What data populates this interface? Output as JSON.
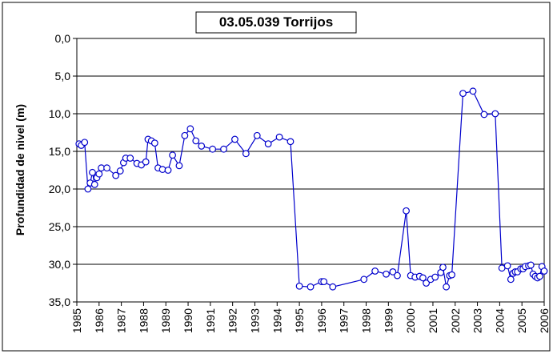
{
  "chart_data": {
    "type": "line",
    "title": "03.05.039 Torrijos",
    "y_label": "Profundidad de nivel (m)",
    "y_inverted": true,
    "grid": true,
    "color": "#0000cc",
    "xlim": [
      1985,
      2006
    ],
    "xticks": [
      1985,
      1986,
      1987,
      1988,
      1989,
      1990,
      1991,
      1992,
      1993,
      1994,
      1995,
      1996,
      1997,
      1998,
      1999,
      2000,
      2001,
      2002,
      2003,
      2004,
      2005,
      2006
    ],
    "ylim": [
      0,
      35
    ],
    "yticks": [
      {
        "value": 0,
        "label": "0,0"
      },
      {
        "value": 5,
        "label": "5,0"
      },
      {
        "value": 10,
        "label": "10,0"
      },
      {
        "value": 15,
        "label": "15,0"
      },
      {
        "value": 20,
        "label": "20,0"
      },
      {
        "value": 25,
        "label": "25,0"
      },
      {
        "value": 30,
        "label": "30,0"
      },
      {
        "value": 35,
        "label": "35,0"
      }
    ],
    "x": [
      1985.1,
      1985.2,
      1985.35,
      1985.5,
      1985.6,
      1985.7,
      1985.8,
      1985.9,
      1986.0,
      1986.1,
      1986.35,
      1986.75,
      1986.95,
      1987.1,
      1987.2,
      1987.4,
      1987.7,
      1987.9,
      1988.1,
      1988.2,
      1988.35,
      1988.5,
      1988.65,
      1988.85,
      1989.1,
      1989.3,
      1989.6,
      1989.85,
      1990.1,
      1990.35,
      1990.6,
      1991.1,
      1991.6,
      1992.1,
      1992.6,
      1993.1,
      1993.6,
      1994.1,
      1994.6,
      1995.0,
      1995.5,
      1996.0,
      1996.1,
      1996.5,
      1997.9,
      1998.4,
      1998.9,
      1999.2,
      1999.4,
      1999.8,
      2000.0,
      2000.2,
      2000.4,
      2000.55,
      2000.7,
      2000.9,
      2001.1,
      2001.35,
      2001.45,
      2001.6,
      2001.75,
      2001.85,
      2002.35,
      2002.8,
      2003.3,
      2003.8,
      2004.1,
      2004.35,
      2004.5,
      2004.6,
      2004.7,
      2004.8,
      2004.95,
      2005.05,
      2005.15,
      2005.3,
      2005.4,
      2005.5,
      2005.6,
      2005.7,
      2005.8,
      2005.9,
      2006.0
    ],
    "values": [
      14.0,
      14.2,
      13.8,
      20.0,
      19.2,
      17.8,
      19.4,
      18.5,
      18.0,
      17.2,
      17.2,
      18.2,
      17.6,
      16.5,
      15.9,
      15.9,
      16.6,
      16.8,
      16.4,
      13.4,
      13.6,
      13.9,
      17.2,
      17.4,
      17.5,
      15.5,
      16.9,
      12.9,
      12.0,
      13.6,
      14.3,
      14.7,
      14.7,
      13.4,
      15.3,
      12.9,
      14.0,
      13.1,
      13.7,
      32.9,
      33.0,
      32.3,
      32.3,
      33.0,
      32.0,
      30.9,
      31.3,
      31.0,
      31.5,
      22.9,
      31.5,
      31.7,
      31.6,
      31.8,
      32.5,
      32.0,
      31.7,
      31.1,
      30.4,
      33.0,
      31.5,
      31.4,
      7.3,
      7.0,
      10.1,
      10.0,
      30.5,
      30.2,
      32.0,
      31.2,
      31.0,
      31.0,
      30.6,
      30.6,
      30.3,
      30.2,
      30.1,
      31.3,
      31.6,
      31.8,
      31.6,
      30.3,
      30.9
    ]
  }
}
